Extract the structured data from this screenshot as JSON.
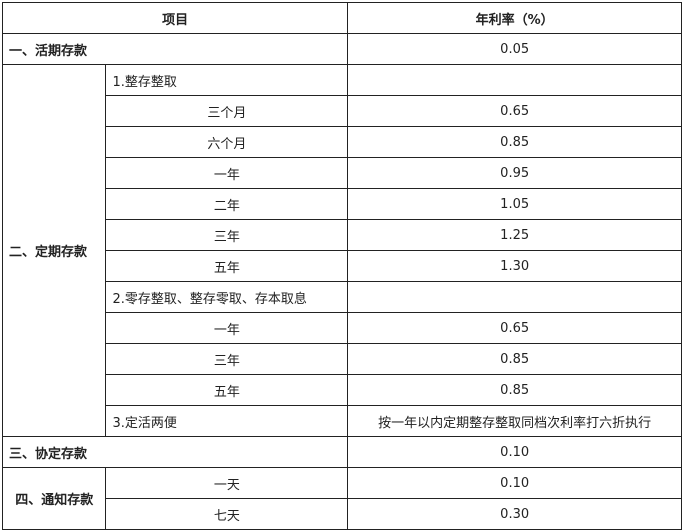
{
  "header": {
    "item": "项目",
    "rate": "年利率（%）"
  },
  "current": {
    "label": "一、活期存款",
    "rate": "0.05"
  },
  "fixed": {
    "label": "二、定期存款",
    "lump": {
      "label": "1.整存整取",
      "rows": [
        {
          "term": "三个月",
          "rate": "0.65"
        },
        {
          "term": "六个月",
          "rate": "0.85"
        },
        {
          "term": "一年",
          "rate": "0.95"
        },
        {
          "term": "二年",
          "rate": "1.05"
        },
        {
          "term": "三年",
          "rate": "1.25"
        },
        {
          "term": "五年",
          "rate": "1.30"
        }
      ]
    },
    "other": {
      "label": "2.零存整取、整存零取、存本取息",
      "rows": [
        {
          "term": "一年",
          "rate": "0.65"
        },
        {
          "term": "三年",
          "rate": "0.85"
        },
        {
          "term": "五年",
          "rate": "0.85"
        }
      ]
    },
    "flex": {
      "label": "3.定活两便",
      "rate": "按一年以内定期整存整取同档次利率打六折执行"
    }
  },
  "agreement": {
    "label": "三、协定存款",
    "rate": "0.10"
  },
  "notice": {
    "label": "四、通知存款",
    "rows": [
      {
        "term": "一天",
        "rate": "0.10"
      },
      {
        "term": "七天",
        "rate": "0.30"
      }
    ]
  }
}
